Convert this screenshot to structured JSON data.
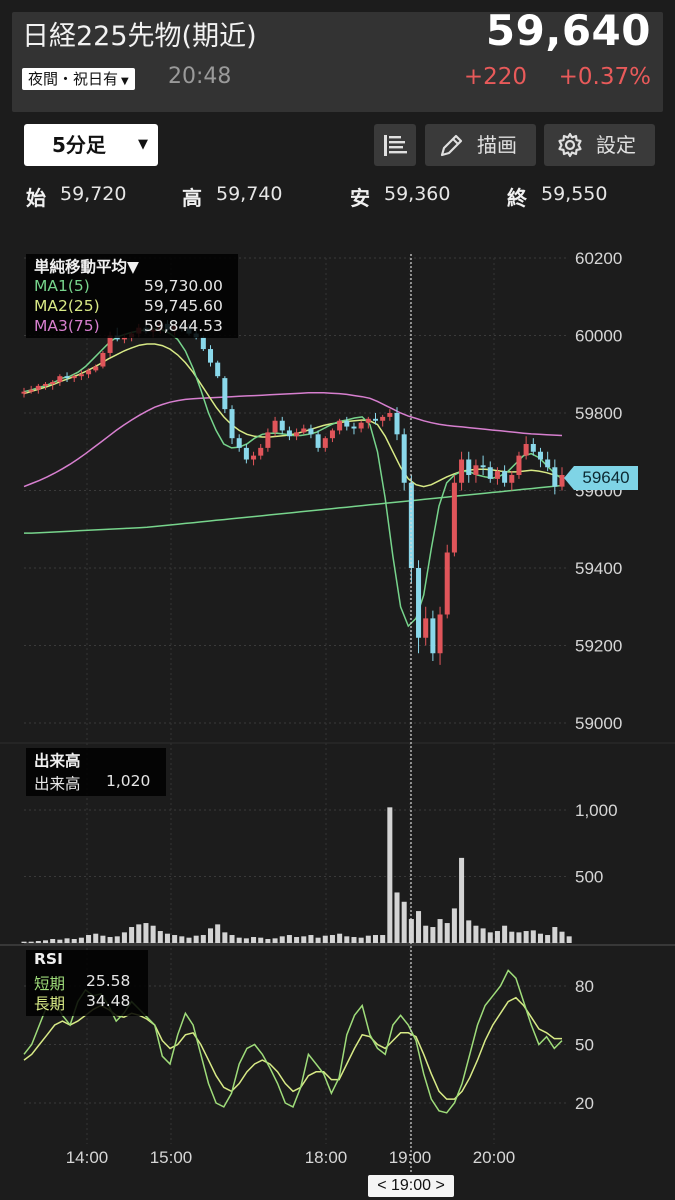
{
  "header": {
    "title": "日経225先物(期近)",
    "price": "59,640",
    "session_label": "夜間・祝日有",
    "time": "20:48",
    "change": "+220",
    "change_pct": "+0.37%"
  },
  "toolbar": {
    "interval": "5分足",
    "draw_label": "描画",
    "settings_label": "設定"
  },
  "ohlc": {
    "open_label": "始",
    "open": "59,720",
    "high_label": "高",
    "high": "59,740",
    "low_label": "安",
    "low": "59,360",
    "close_label": "終",
    "close": "59,550"
  },
  "ma_legend": {
    "title": "単純移動平均▼",
    "ma1_label": "MA1(5)",
    "ma1_value": "59,730.00",
    "ma2_label": "MA2(25)",
    "ma2_value": "59,745.60",
    "ma3_label": "MA3(75)",
    "ma3_value": "59,844.53"
  },
  "volume_legend": {
    "title": "出来高",
    "label": "出来高",
    "value": "1,020"
  },
  "rsi_legend": {
    "title": "RSI",
    "short_label": "短期",
    "short_value": "25.58",
    "long_label": "長期",
    "long_value": "34.48"
  },
  "price_marker": "59640",
  "cursor_time": "< 19:00 >",
  "colors": {
    "background": "#1c1c1c",
    "up_candle": "#e0555a",
    "down_candle": "#8ad8ea",
    "ma1": "#77d48c",
    "ma2": "#d8ea86",
    "ma3": "#d77fcf",
    "volume": "#d4d4d4",
    "rsi_short": "#9fdc7a",
    "rsi_long": "#d8ea86",
    "change": "#e85a5a"
  },
  "chart_data": {
    "type": "candlestick",
    "y_ticks": [
      "60200",
      "60000",
      "59800",
      "59600",
      "59400",
      "59200",
      "59000"
    ],
    "ylim": [
      58990,
      60250
    ],
    "x_ticks": [
      "14:00",
      "15:00",
      "18:00",
      "19:00",
      "20:00"
    ],
    "volume_ticks": [
      "1,000",
      "500"
    ],
    "rsi_ticks": [
      "80",
      "50",
      "20"
    ],
    "candles": [
      [
        59850,
        59865,
        59840,
        59855
      ],
      [
        59855,
        59870,
        59850,
        59860
      ],
      [
        59860,
        59875,
        59850,
        59870
      ],
      [
        59870,
        59880,
        59860,
        59875
      ],
      [
        59875,
        59885,
        59860,
        59880
      ],
      [
        59880,
        59900,
        59870,
        59895
      ],
      [
        59895,
        59905,
        59880,
        59890
      ],
      [
        59890,
        59900,
        59880,
        59895
      ],
      [
        59895,
        59910,
        59885,
        59900
      ],
      [
        59900,
        59915,
        59890,
        59910
      ],
      [
        59910,
        59925,
        59905,
        59920
      ],
      [
        59920,
        59960,
        59915,
        59955
      ],
      [
        59955,
        60010,
        59945,
        60000
      ],
      [
        60000,
        60020,
        59985,
        59990
      ],
      [
        59990,
        60005,
        59980,
        59995
      ],
      [
        59995,
        60010,
        59985,
        60005
      ],
      [
        60005,
        60030,
        59995,
        60020
      ],
      [
        60020,
        60030,
        60005,
        60010
      ],
      [
        60010,
        60020,
        59995,
        60015
      ],
      [
        60015,
        60040,
        60005,
        60030
      ],
      [
        60030,
        60040,
        60010,
        60015
      ],
      [
        60015,
        60030,
        60000,
        60025
      ],
      [
        60025,
        60035,
        60010,
        60020
      ],
      [
        60020,
        60030,
        60000,
        60005
      ],
      [
        60005,
        60015,
        59990,
        59995
      ],
      [
        59995,
        60000,
        59960,
        59965
      ],
      [
        59965,
        59975,
        59920,
        59930
      ],
      [
        59930,
        59935,
        59890,
        59895
      ],
      [
        59890,
        59895,
        59800,
        59810
      ],
      [
        59810,
        59820,
        59720,
        59735
      ],
      [
        59735,
        59745,
        59700,
        59710
      ],
      [
        59710,
        59720,
        59670,
        59680
      ],
      [
        59680,
        59700,
        59665,
        59690
      ],
      [
        59690,
        59720,
        59680,
        59710
      ],
      [
        59710,
        59760,
        59700,
        59750
      ],
      [
        59750,
        59790,
        59740,
        59780
      ],
      [
        59780,
        59790,
        59745,
        59755
      ],
      [
        59755,
        59765,
        59730,
        59740
      ],
      [
        59740,
        59760,
        59730,
        59750
      ],
      [
        59750,
        59770,
        59745,
        59760
      ],
      [
        59760,
        59770,
        59735,
        59745
      ],
      [
        59745,
        59755,
        59700,
        59710
      ],
      [
        59710,
        59740,
        59700,
        59735
      ],
      [
        59735,
        59760,
        59725,
        59755
      ],
      [
        59755,
        59785,
        59745,
        59780
      ],
      [
        59780,
        59790,
        59755,
        59765
      ],
      [
        59765,
        59775,
        59745,
        59760
      ],
      [
        59760,
        59780,
        59750,
        59775
      ],
      [
        59775,
        59790,
        59760,
        59785
      ],
      [
        59785,
        59800,
        59770,
        59780
      ],
      [
        59780,
        59795,
        59765,
        59790
      ],
      [
        59790,
        59810,
        59780,
        59800
      ],
      [
        59800,
        59815,
        59730,
        59745
      ],
      [
        59745,
        59760,
        59600,
        59620
      ],
      [
        59620,
        59640,
        59360,
        59400
      ],
      [
        59400,
        59420,
        59180,
        59220
      ],
      [
        59220,
        59300,
        59200,
        59270
      ],
      [
        59270,
        59290,
        59160,
        59180
      ],
      [
        59180,
        59300,
        59150,
        59280
      ],
      [
        59280,
        59460,
        59270,
        59440
      ],
      [
        59440,
        59640,
        59430,
        59620
      ],
      [
        59620,
        59700,
        59600,
        59680
      ],
      [
        59680,
        59700,
        59620,
        59640
      ],
      [
        59640,
        59680,
        59620,
        59665
      ],
      [
        59665,
        59690,
        59640,
        59660
      ],
      [
        59660,
        59675,
        59620,
        59630
      ],
      [
        59630,
        59660,
        59615,
        59650
      ],
      [
        59650,
        59665,
        59610,
        59620
      ],
      [
        59620,
        59650,
        59600,
        59640
      ],
      [
        59640,
        59700,
        59630,
        59690
      ],
      [
        59690,
        59740,
        59680,
        59720
      ],
      [
        59720,
        59735,
        59690,
        59700
      ],
      [
        59700,
        59710,
        59660,
        59680
      ],
      [
        59680,
        59700,
        59650,
        59660
      ],
      [
        59660,
        59680,
        59590,
        59610
      ],
      [
        59610,
        59660,
        59600,
        59640
      ]
    ],
    "ma1": [
      59855,
      59860,
      59866,
      59872,
      59880,
      59890,
      59895,
      59905,
      59920,
      59940,
      59960,
      59980,
      59995,
      60002,
      60008,
      60012,
      60015,
      60018,
      60015,
      60005,
      59990,
      59960,
      59915,
      59860,
      59800,
      59755,
      59720,
      59710,
      59712,
      59720,
      59735,
      59745,
      59748,
      59748,
      59745,
      59742,
      59742,
      59745,
      59750,
      59760,
      59770,
      59778,
      59782,
      59787,
      59790,
      59770,
      59700,
      59580,
      59430,
      59300,
      59250,
      59270,
      59330,
      59450,
      59560,
      59620,
      59640,
      59650,
      59648,
      59640,
      59635,
      59632,
      59638,
      59650,
      59670,
      59690,
      59695,
      59685,
      59665,
      59645,
      59630
    ],
    "ma2": [
      59850,
      59856,
      59862,
      59868,
      59875,
      59883,
      59890,
      59898,
      59907,
      59917,
      59928,
      59940,
      59950,
      59960,
      59968,
      59975,
      59978,
      59978,
      59974,
      59965,
      59950,
      59930,
      59905,
      59875,
      59845,
      59815,
      59790,
      59770,
      59755,
      59745,
      59740,
      59738,
      59738,
      59740,
      59742,
      59745,
      59750,
      59756,
      59762,
      59768,
      59772,
      59775,
      59778,
      59780,
      59782,
      59780,
      59770,
      59740,
      59700,
      59660,
      59630,
      59615,
      59610,
      59615,
      59625,
      59635,
      59643,
      59650,
      59653,
      59655,
      59655,
      59653,
      59650,
      59648,
      59648,
      59650,
      59652,
      59650,
      59646,
      59640,
      59635
    ],
    "ma3": [
      59610,
      59618,
      59626,
      59635,
      59645,
      59656,
      59668,
      59681,
      59695,
      59710,
      59725,
      59740,
      59755,
      59769,
      59782,
      59794,
      59805,
      59815,
      59822,
      59828,
      59832,
      59835,
      59837,
      59838,
      59839,
      59840,
      59841,
      59842,
      59843,
      59844,
      59845,
      59846,
      59847,
      59848,
      59849,
      59850,
      59851,
      59852,
      59852,
      59852,
      59851,
      59850,
      59848,
      59845,
      59842,
      59838,
      59830,
      59820,
      59810,
      59800,
      59792,
      59786,
      59780,
      59775,
      59771,
      59768,
      59766,
      59764,
      59762,
      59760,
      59758,
      59756,
      59754,
      59752,
      59750,
      59748,
      59746,
      59745,
      59744,
      59743,
      59742
    ],
    "ma4": [
      59490,
      59490,
      59491,
      59492,
      59493,
      59494,
      59495,
      59496,
      59497,
      59498,
      59499,
      59500,
      59501,
      59502,
      59503,
      59504,
      59505,
      59507,
      59509,
      59511,
      59513,
      59515,
      59517,
      59519,
      59521,
      59523,
      59525,
      59527,
      59529,
      59531,
      59533,
      59535,
      59537,
      59539,
      59541,
      59543,
      59545,
      59547,
      59549,
      59551,
      59553,
      59555,
      59557,
      59559,
      59561,
      59563,
      59565,
      59567,
      59569,
      59571,
      59573,
      59575,
      59577,
      59579,
      59581,
      59583,
      59585,
      59587,
      59589,
      59591,
      59593,
      59595,
      59597,
      59599,
      59601,
      59603,
      59605,
      59607,
      59609,
      59611,
      59613
    ],
    "volume": [
      10,
      10,
      15,
      20,
      30,
      25,
      35,
      30,
      40,
      60,
      70,
      55,
      45,
      50,
      80,
      120,
      140,
      150,
      130,
      90,
      70,
      60,
      50,
      40,
      55,
      60,
      110,
      140,
      80,
      60,
      40,
      35,
      45,
      40,
      30,
      35,
      50,
      60,
      45,
      50,
      60,
      40,
      55,
      60,
      70,
      50,
      45,
      40,
      55,
      60,
      60,
      1020,
      380,
      310,
      180,
      240,
      130,
      120,
      180,
      150,
      260,
      640,
      170,
      130,
      110,
      80,
      90,
      130,
      85,
      80,
      90,
      95,
      70,
      60,
      120,
      85,
      50
    ],
    "rsi_short": [
      45,
      50,
      60,
      70,
      72,
      65,
      60,
      72,
      78,
      75,
      76,
      70,
      62,
      66,
      72,
      68,
      64,
      60,
      44,
      40,
      55,
      66,
      60,
      45,
      30,
      20,
      18,
      25,
      40,
      48,
      50,
      45,
      38,
      30,
      20,
      18,
      28,
      45,
      40,
      35,
      25,
      33,
      55,
      65,
      70,
      55,
      48,
      45,
      60,
      65,
      60,
      52,
      35,
      22,
      16,
      15,
      20,
      30,
      45,
      60,
      70,
      75,
      80,
      88,
      84,
      72,
      60,
      50,
      54,
      48,
      52
    ],
    "rsi_long": [
      42,
      45,
      50,
      55,
      60,
      62,
      60,
      62,
      65,
      68,
      70,
      68,
      65,
      64,
      66,
      65,
      63,
      60,
      52,
      48,
      50,
      55,
      56,
      50,
      42,
      34,
      28,
      26,
      30,
      36,
      40,
      42,
      40,
      36,
      30,
      26,
      28,
      34,
      36,
      36,
      32,
      32,
      40,
      48,
      55,
      54,
      50,
      48,
      52,
      56,
      56,
      54,
      45,
      35,
      26,
      22,
      22,
      26,
      33,
      42,
      52,
      60,
      66,
      72,
      74,
      70,
      64,
      58,
      56,
      53,
      53
    ]
  }
}
